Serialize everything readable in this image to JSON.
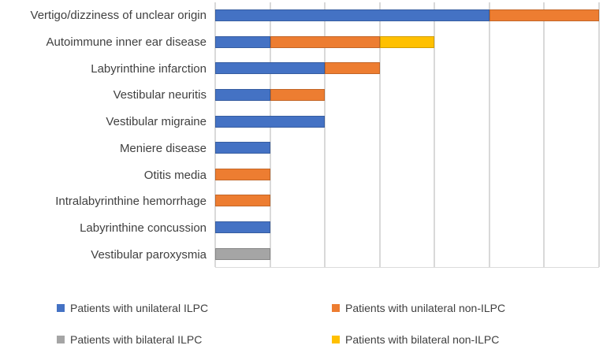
{
  "figure": {
    "background_color": "#FFFFFF",
    "text_color": "#404040"
  },
  "chart_data": {
    "type": "bar",
    "orientation": "horizontal",
    "stacked": true,
    "categories": [
      "Vertigo/dizziness of unclear origin",
      "Autoimmune inner ear disease",
      "Labyrinthine infarction",
      "Vestibular neuritis",
      "Vestibular migraine",
      "Meniere disease",
      "Otitis media",
      "Intralabyrinthine hemorrhage",
      "Labyrinthine concussion",
      "Vestibular paroxysmia"
    ],
    "series": [
      {
        "name": "Patients with unilateral ILPC",
        "color": "#4472C4",
        "values": [
          5,
          1,
          2,
          1,
          2,
          1,
          0,
          0,
          1,
          0
        ]
      },
      {
        "name": "Patients with unilateral non-ILPC",
        "color": "#ED7D31",
        "values": [
          2,
          2,
          1,
          1,
          0,
          0,
          1,
          1,
          0,
          0
        ]
      },
      {
        "name": "Patients with bilateral ILPC",
        "color": "#A5A5A5",
        "values": [
          0,
          0,
          0,
          0,
          0,
          0,
          0,
          0,
          0,
          1
        ]
      },
      {
        "name": "Patients with bilateral non-ILPC",
        "color": "#FFC000",
        "values": [
          0,
          1,
          0,
          0,
          0,
          0,
          0,
          0,
          0,
          0
        ]
      }
    ],
    "xlim": [
      0,
      7
    ],
    "gridline_interval": 1,
    "gridline_color": "#D9D9D9",
    "grid": true,
    "x_tick_labels_shown": false,
    "legend_position": "bottom",
    "legend_columns": 2
  }
}
